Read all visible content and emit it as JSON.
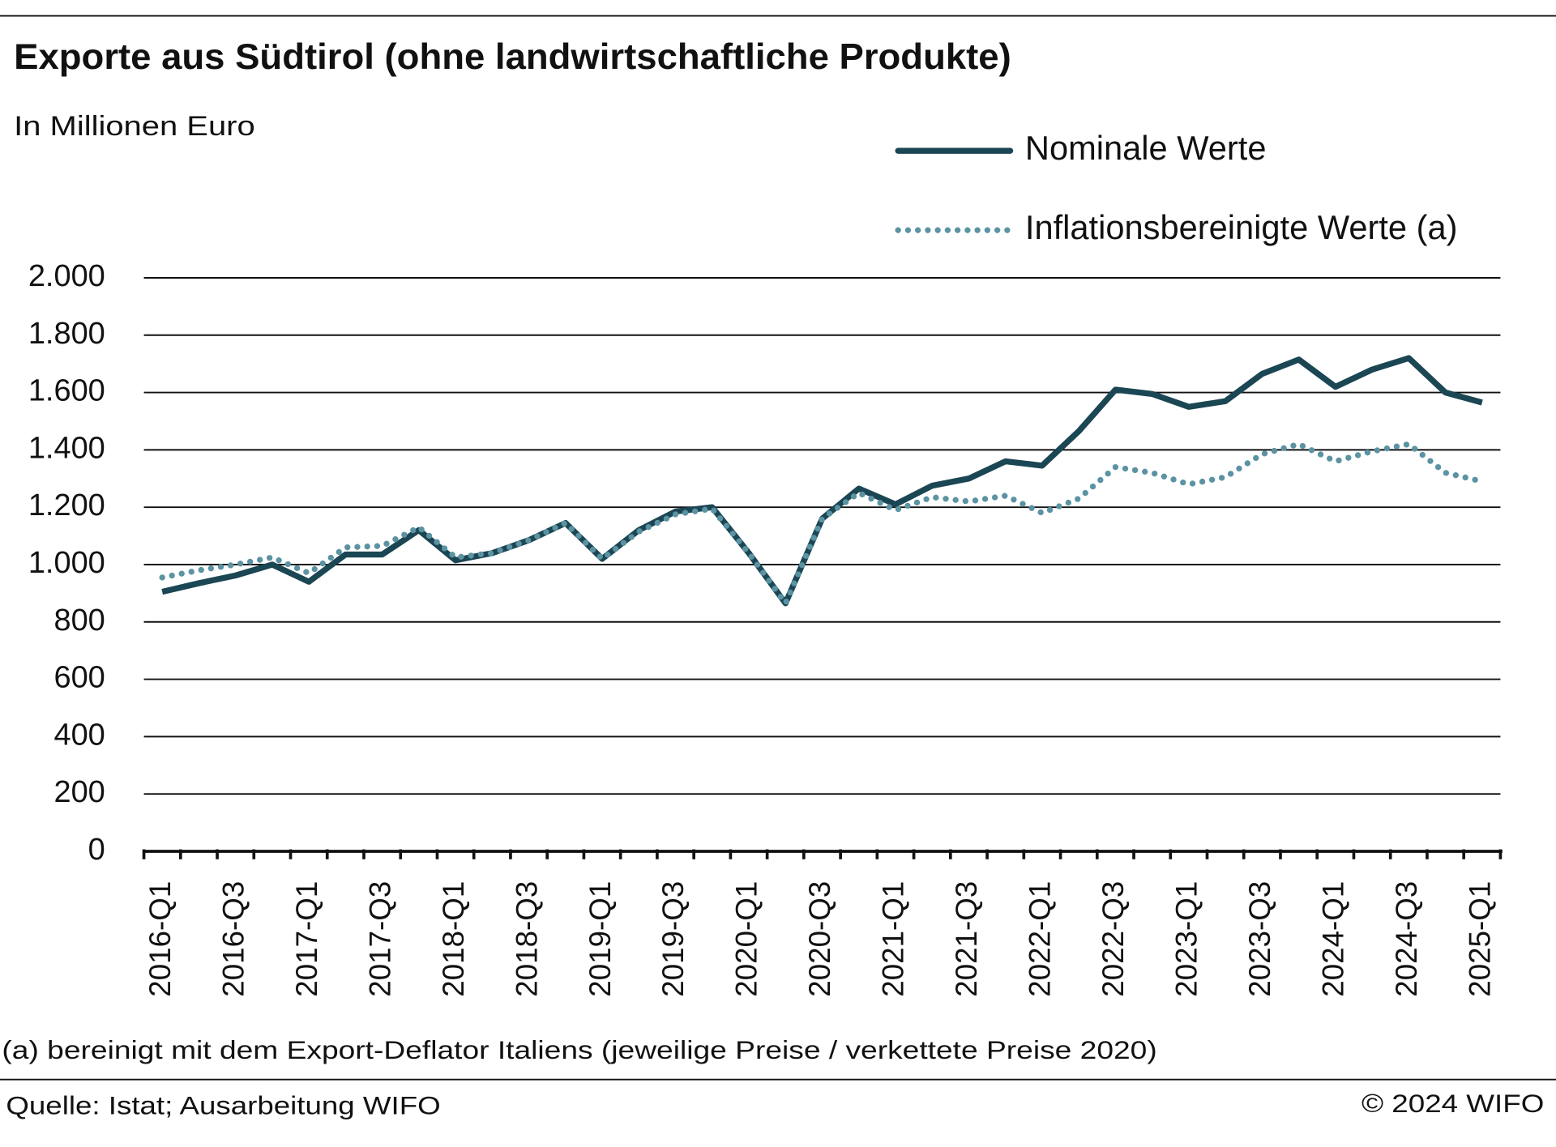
{
  "chart_data": {
    "type": "line",
    "title": "Exporte aus Südtirol (ohne landwirtschaftliche Produkte)",
    "subtitle": "In Millionen Euro",
    "note": "(a) bereinigt mit dem Export-Deflator Italiens (jeweilige Preise / verkettete Preise 2020)",
    "source": "Quelle: Istat; Ausarbeitung WIFO",
    "copyright": "© 2024 WIFO",
    "categories": [
      "2016-Q1",
      null,
      "2016-Q3",
      null,
      "2017-Q1",
      null,
      "2017-Q3",
      null,
      "2018-Q1",
      null,
      "2018-Q3",
      null,
      "2019-Q1",
      null,
      "2019-Q3",
      null,
      "2020-Q1",
      null,
      "2020-Q3",
      null,
      "2021-Q1",
      null,
      "2021-Q3",
      null,
      "2022-Q1",
      null,
      "2022-Q3",
      null,
      "2023-Q1",
      null,
      "2023-Q3",
      null,
      "2024-Q1",
      null,
      "2024-Q3",
      null,
      "2025-Q1"
    ],
    "series": [
      {
        "name": "Nominale Werte",
        "color": "#1b4653",
        "style": "solid",
        "values": [
          905,
          935,
          962,
          1000,
          940,
          1035,
          1035,
          1120,
          1015,
          1040,
          1085,
          1145,
          1020,
          1120,
          1185,
          1200,
          1040,
          865,
          1160,
          1265,
          1210,
          1275,
          1300,
          1360,
          1345,
          1465,
          1610,
          1595,
          1550,
          1570,
          1665,
          1715,
          1620,
          1680,
          1720,
          1600,
          1565
        ]
      },
      {
        "name": "Inflationsbereinigte Werte (a)",
        "color": "#5b93a3",
        "style": "dotted",
        "values": [
          955,
          980,
          1000,
          1025,
          970,
          1060,
          1065,
          1130,
          1025,
          1040,
          1085,
          1145,
          1020,
          1115,
          1175,
          1195,
          1040,
          865,
          1160,
          1250,
          1190,
          1235,
          1220,
          1240,
          1180,
          1230,
          1340,
          1320,
          1280,
          1305,
          1385,
          1420,
          1360,
          1395,
          1420,
          1320,
          1290
        ]
      }
    ],
    "ylim": [
      0,
      2000
    ],
    "yticks": [
      0,
      200,
      400,
      600,
      800,
      {
        "value": 1000,
        "label": "1.000"
      },
      {
        "value": 1200,
        "label": "1.200"
      },
      {
        "value": 1400,
        "label": "1.400"
      },
      {
        "value": 1600,
        "label": "1.600"
      },
      {
        "value": 1800,
        "label": "1.800"
      },
      {
        "value": 2000,
        "label": "2.000"
      }
    ],
    "grid": true
  }
}
